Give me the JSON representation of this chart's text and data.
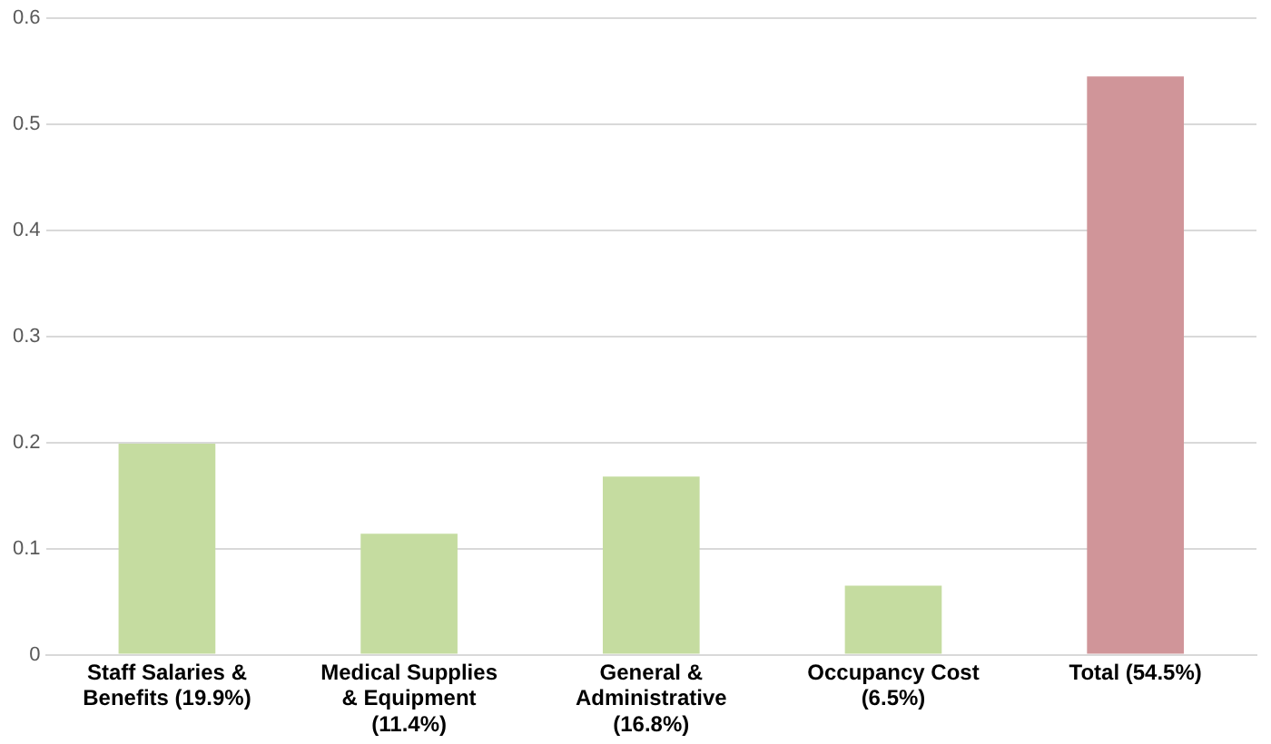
{
  "chart_data": {
    "type": "bar",
    "categories": [
      "Staff Salaries & Benefits (19.9%)",
      "Medical Supplies & Equipment (11.4%)",
      "General & Administrative (16.8%)",
      "Occupancy Cost (6.5%)",
      "Total (54.5%)"
    ],
    "values": [
      0.199,
      0.114,
      0.168,
      0.065,
      0.545
    ],
    "colors": [
      "#c5dca0",
      "#c5dca0",
      "#c5dca0",
      "#c5dca0",
      "#d09599"
    ],
    "ylim": [
      0,
      0.6
    ],
    "yticks": [
      0,
      0.1,
      0.2,
      0.3,
      0.4,
      0.5,
      0.6
    ],
    "grid": "y"
  }
}
